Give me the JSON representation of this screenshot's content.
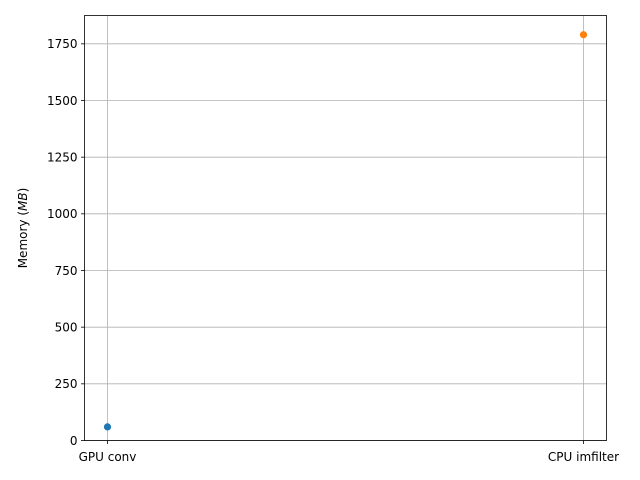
{
  "chart_data": {
    "type": "scatter",
    "categories": [
      "GPU conv",
      "CPU imfilter"
    ],
    "series": [
      {
        "category": "GPU conv",
        "value": 60,
        "color": "#1f77b4"
      },
      {
        "category": "CPU imfilter",
        "value": 1790,
        "color": "#ff7f0e"
      }
    ],
    "ylabel_prefix": "Memory (",
    "ylabel_unit": "MB",
    "ylabel_suffix": ")",
    "ylim": [
      0,
      1875
    ],
    "yticks": [
      0,
      250,
      500,
      750,
      1000,
      1250,
      1500,
      1750
    ],
    "grid": true
  }
}
